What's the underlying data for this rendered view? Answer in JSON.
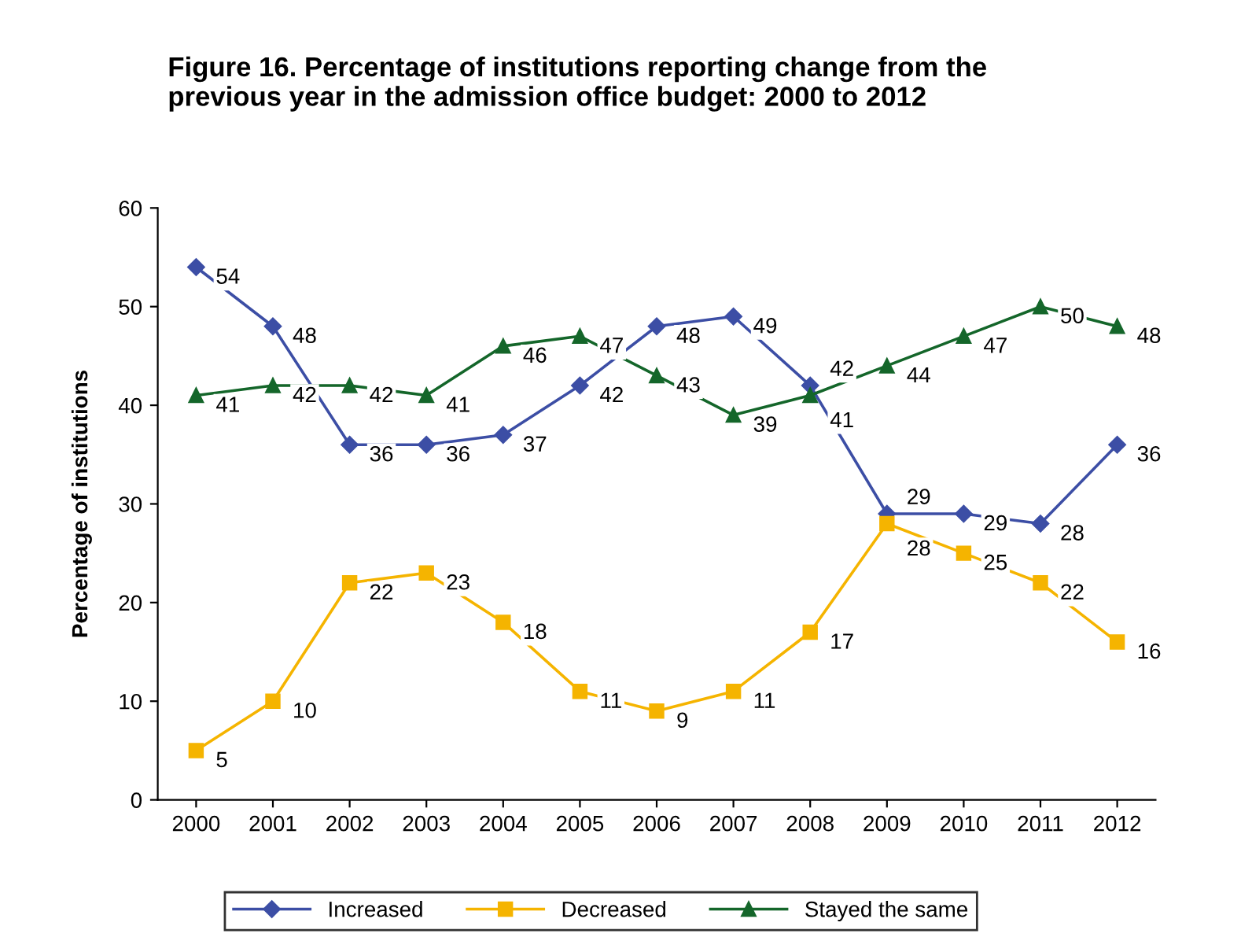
{
  "chart_data": {
    "type": "line",
    "title": "Figure 16. Percentage of institutions reporting change from the\nprevious year in the admission office budget: 2000 to 2012",
    "ylabel": "Percentage of institutions",
    "categories": [
      "2000",
      "2001",
      "2002",
      "2003",
      "2004",
      "2005",
      "2006",
      "2007",
      "2008",
      "2009",
      "2010",
      "2011",
      "2012"
    ],
    "series": [
      {
        "name": "Increased",
        "color": "#3c4ea5",
        "marker": "diamond",
        "values": [
          54,
          48,
          36,
          36,
          37,
          42,
          48,
          49,
          42,
          29,
          29,
          28,
          36
        ]
      },
      {
        "name": "Decreased",
        "color": "#f5b400",
        "marker": "square",
        "values": [
          5,
          10,
          22,
          23,
          18,
          11,
          9,
          11,
          17,
          28,
          25,
          22,
          16
        ]
      },
      {
        "name": "Stayed the same",
        "color": "#14662a",
        "marker": "triangle",
        "values": [
          41,
          42,
          42,
          41,
          46,
          47,
          43,
          39,
          41,
          44,
          47,
          50,
          48
        ]
      }
    ],
    "ylim": [
      0,
      60
    ],
    "yticks": [
      0,
      10,
      20,
      30,
      40,
      50,
      60
    ],
    "data_labels": true,
    "legend": "bottom",
    "grid": false
  }
}
